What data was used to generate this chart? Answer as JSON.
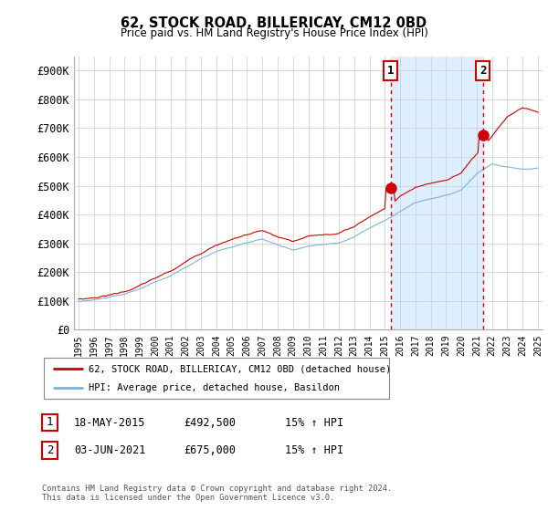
{
  "title": "62, STOCK ROAD, BILLERICAY, CM12 0BD",
  "subtitle": "Price paid vs. HM Land Registry's House Price Index (HPI)",
  "ylabel_ticks": [
    "£0",
    "£100K",
    "£200K",
    "£300K",
    "£400K",
    "£500K",
    "£600K",
    "£700K",
    "£800K",
    "£900K"
  ],
  "ytick_values": [
    0,
    100000,
    200000,
    300000,
    400000,
    500000,
    600000,
    700000,
    800000,
    900000
  ],
  "ylim": [
    0,
    950000
  ],
  "xlim_start": 1995.0,
  "xlim_end": 2025.0,
  "hpi_color": "#7fb3d3",
  "price_color": "#cc0000",
  "marker1_date": 2015.37,
  "marker1_price": 492500,
  "marker2_date": 2021.42,
  "marker2_price": 675000,
  "vline_color": "#cc0000",
  "shade_color": "#ddeeff",
  "legend_line1": "62, STOCK ROAD, BILLERICAY, CM12 0BD (detached house)",
  "legend_line2": "HPI: Average price, detached house, Basildon",
  "table_rows": [
    {
      "num": "1",
      "date": "18-MAY-2015",
      "price": "£492,500",
      "hpi": "15% ↑ HPI"
    },
    {
      "num": "2",
      "date": "03-JUN-2021",
      "price": "£675,000",
      "hpi": "15% ↑ HPI"
    }
  ],
  "footnote": "Contains HM Land Registry data © Crown copyright and database right 2024.\nThis data is licensed under the Open Government Licence v3.0.",
  "background_color": "#ffffff",
  "grid_color": "#cccccc"
}
